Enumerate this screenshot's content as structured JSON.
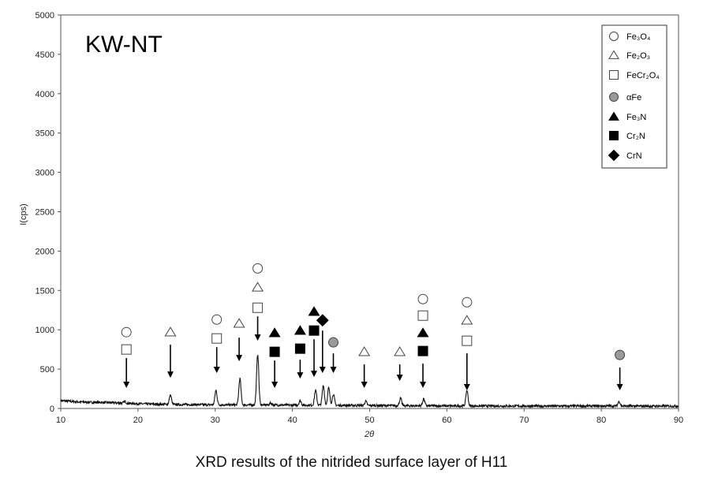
{
  "chart_data": {
    "type": "line",
    "panel_label": "KW-NT",
    "xlabel": "2θ",
    "ylabel": "I(cps)",
    "xlim": [
      10,
      90
    ],
    "ylim": [
      0,
      5000
    ],
    "xticks": [
      10,
      20,
      30,
      40,
      50,
      60,
      70,
      80,
      90
    ],
    "yticks": [
      0,
      500,
      1000,
      1500,
      2000,
      2500,
      3000,
      3500,
      4000,
      4500,
      5000
    ],
    "grid": false,
    "legend_position": "top-right",
    "legend": [
      {
        "key": "fe3o4",
        "symbol": "circle-open",
        "text": "Fe₃O₄"
      },
      {
        "key": "fe2o3",
        "symbol": "triangle-open",
        "text": "Fe₂O₃"
      },
      {
        "key": "fecr2o4",
        "symbol": "square-open",
        "text": "FeCr₂O₄"
      },
      {
        "key": "alphafe",
        "symbol": "circle-gray",
        "text": "αFe"
      },
      {
        "key": "fe3n",
        "symbol": "triangle-filled",
        "text": "Fe₃N"
      },
      {
        "key": "cr2n",
        "symbol": "square-filled",
        "text": "Cr₂N"
      },
      {
        "key": "crn",
        "symbol": "diamond-filled",
        "text": "CrN"
      }
    ],
    "series": [
      {
        "baseline": [
          [
            10,
            100
          ],
          [
            12,
            85
          ],
          [
            14,
            78
          ],
          [
            16,
            75
          ],
          [
            17.5,
            70
          ],
          [
            20,
            60
          ],
          [
            22,
            55
          ],
          [
            25,
            50
          ],
          [
            28,
            48
          ],
          [
            32,
            45
          ],
          [
            36,
            45
          ],
          [
            40,
            42
          ],
          [
            46,
            40
          ],
          [
            50,
            38
          ],
          [
            55,
            35
          ],
          [
            60,
            32
          ],
          [
            65,
            32
          ],
          [
            70,
            30
          ],
          [
            75,
            30
          ],
          [
            80,
            32
          ],
          [
            85,
            30
          ],
          [
            90,
            30
          ]
        ],
        "peaks": [
          {
            "x": 18.3,
            "y": 90
          },
          {
            "x": 24.2,
            "y": 170
          },
          {
            "x": 30.1,
            "y": 230
          },
          {
            "x": 33.2,
            "y": 380
          },
          {
            "x": 35.5,
            "y": 690
          },
          {
            "x": 37.2,
            "y": 70
          },
          {
            "x": 41.0,
            "y": 100
          },
          {
            "x": 43.0,
            "y": 230
          },
          {
            "x": 44.0,
            "y": 290
          },
          {
            "x": 44.7,
            "y": 260
          },
          {
            "x": 45.3,
            "y": 180
          },
          {
            "x": 49.5,
            "y": 90
          },
          {
            "x": 54.0,
            "y": 130
          },
          {
            "x": 57.0,
            "y": 120
          },
          {
            "x": 62.6,
            "y": 230
          },
          {
            "x": 82.3,
            "y": 90
          }
        ]
      }
    ],
    "peak_annotations": [
      {
        "x": 18.5,
        "markers": [
          {
            "s": "circle-open",
            "y": 970
          },
          {
            "s": "square-open",
            "y": 750
          }
        ],
        "arrow_top": 640,
        "arrow_bottom": 260
      },
      {
        "x": 24.2,
        "markers": [
          {
            "s": "triangle-open",
            "y": 970
          }
        ],
        "arrow_top": 810,
        "arrow_bottom": 390
      },
      {
        "x": 30.2,
        "markers": [
          {
            "s": "circle-open",
            "y": 1130
          },
          {
            "s": "square-open",
            "y": 890
          }
        ],
        "arrow_top": 780,
        "arrow_bottom": 450
      },
      {
        "x": 33.1,
        "markers": [
          {
            "s": "triangle-open",
            "y": 1080
          }
        ],
        "arrow_top": 900,
        "arrow_bottom": 600
      },
      {
        "x": 35.5,
        "markers": [
          {
            "s": "circle-open",
            "y": 1780
          },
          {
            "s": "triangle-open",
            "y": 1540
          },
          {
            "s": "square-open",
            "y": 1280
          }
        ],
        "arrow_top": 1170,
        "arrow_bottom": 860
      },
      {
        "x": 37.7,
        "markers": [
          {
            "s": "triangle-filled",
            "y": 960
          },
          {
            "s": "square-filled",
            "y": 720
          }
        ],
        "arrow_top": 610,
        "arrow_bottom": 260
      },
      {
        "x": 41.0,
        "markers": [
          {
            "s": "triangle-filled",
            "y": 990
          },
          {
            "s": "square-filled",
            "y": 760
          }
        ],
        "arrow_top": 620,
        "arrow_bottom": 380
      },
      {
        "x": 42.8,
        "markers": [
          {
            "s": "triangle-filled",
            "y": 1230
          },
          {
            "s": "square-filled",
            "y": 990
          }
        ],
        "arrow_top": 880,
        "arrow_bottom": 400
      },
      {
        "x": 43.9,
        "markers": [
          {
            "s": "diamond-filled",
            "y": 1120
          }
        ],
        "arrow_top": 990,
        "arrow_bottom": 450
      },
      {
        "x": 45.3,
        "markers": [
          {
            "s": "circle-gray",
            "y": 840
          }
        ],
        "arrow_top": 700,
        "arrow_bottom": 450
      },
      {
        "x": 49.3,
        "markers": [
          {
            "s": "triangle-open",
            "y": 720
          }
        ],
        "arrow_top": 560,
        "arrow_bottom": 260
      },
      {
        "x": 53.9,
        "markers": [
          {
            "s": "triangle-open",
            "y": 720
          }
        ],
        "arrow_top": 560,
        "arrow_bottom": 350
      },
      {
        "x": 56.9,
        "markers": [
          {
            "s": "circle-open",
            "y": 1390
          },
          {
            "s": "square-open",
            "y": 1180
          },
          {
            "s": "triangle-filled",
            "y": 960
          },
          {
            "s": "square-filled",
            "y": 730
          }
        ],
        "arrow_top": 570,
        "arrow_bottom": 260
      },
      {
        "x": 62.6,
        "markers": [
          {
            "s": "circle-open",
            "y": 1350
          },
          {
            "s": "triangle-open",
            "y": 1120
          },
          {
            "s": "square-open",
            "y": 860
          }
        ],
        "arrow_top": 700,
        "arrow_bottom": 230
      },
      {
        "x": 82.4,
        "markers": [
          {
            "s": "circle-gray",
            "y": 680
          }
        ],
        "arrow_top": 520,
        "arrow_bottom": 230
      }
    ]
  },
  "caption": "XRD results of the nitrided surface layer of H11"
}
